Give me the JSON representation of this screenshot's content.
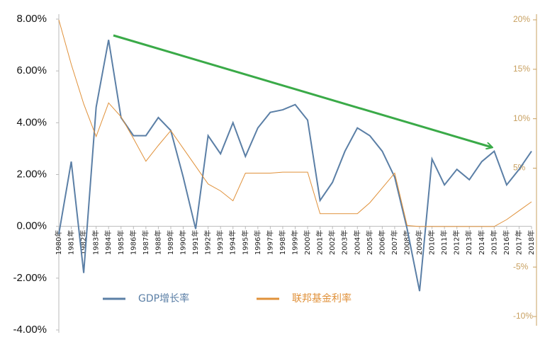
{
  "chart_data": {
    "type": "line",
    "categories": [
      "1980年",
      "1981年",
      "1982年",
      "1983年",
      "1984年",
      "1985年",
      "1986年",
      "1987年",
      "1988年",
      "1989年",
      "1990年",
      "1991年",
      "1992年",
      "1993年",
      "1994年",
      "1995年",
      "1996年",
      "1997年",
      "1998年",
      "1999年",
      "2000年",
      "2001年",
      "2002年",
      "2003年",
      "2004年",
      "2005年",
      "2006年",
      "2007年",
      "2008年",
      "2009年",
      "2010年",
      "2011年",
      "2012年",
      "2013年",
      "2014年",
      "2015年",
      "2016年",
      "2017年",
      "2018年"
    ],
    "series": [
      {
        "name": "GDP增长率",
        "color": "#5b7fa6",
        "axis": "y",
        "values": [
          -0.3,
          2.5,
          -1.8,
          4.6,
          7.2,
          4.2,
          3.5,
          3.5,
          4.2,
          3.7,
          1.9,
          -0.1,
          3.5,
          2.8,
          4.0,
          2.7,
          3.8,
          4.4,
          4.5,
          4.7,
          4.1,
          1.0,
          1.7,
          2.9,
          3.8,
          3.5,
          2.9,
          1.9,
          -0.1,
          -2.5,
          2.6,
          1.6,
          2.2,
          1.8,
          2.5,
          2.9,
          1.6,
          2.2,
          2.9
        ]
      },
      {
        "name": "联邦基金利率",
        "color": "#e0913a",
        "axis": "y2",
        "values": [
          20.0,
          15.5,
          11.5,
          8.2,
          11.6,
          10.2,
          8.0,
          5.7,
          7.3,
          8.8,
          7.0,
          5.2,
          3.4,
          2.7,
          1.7,
          4.5,
          4.5,
          4.5,
          4.6,
          4.6,
          4.6,
          0.4,
          0.4,
          0.4,
          0.4,
          1.5,
          3.0,
          4.5,
          -0.8,
          -0.9,
          -0.9,
          -0.9,
          -0.9,
          -0.9,
          -0.9,
          -0.9,
          -0.2,
          0.7,
          1.6
        ]
      }
    ],
    "ylim": [
      -4,
      8
    ],
    "yticks": [
      {
        "value": -4,
        "label": "-4.00%"
      },
      {
        "value": -2,
        "label": "-2.00%"
      },
      {
        "value": 0,
        "label": "0.00%"
      },
      {
        "value": 2,
        "label": "2.00%"
      },
      {
        "value": 4,
        "label": "4.00%"
      },
      {
        "value": 6,
        "label": "6.00%"
      },
      {
        "value": 8,
        "label": "8.00%"
      }
    ],
    "y2lim": [
      -10,
      20
    ],
    "y2ticks": [
      {
        "value": -10,
        "label": "-10%"
      },
      {
        "value": -5,
        "label": "-5%"
      },
      {
        "value": 5,
        "label": "5%"
      },
      {
        "value": 10,
        "label": "10%"
      },
      {
        "value": 15,
        "label": "15%"
      },
      {
        "value": 20,
        "label": "20%"
      }
    ],
    "grid": false,
    "legend": "bottom"
  }
}
